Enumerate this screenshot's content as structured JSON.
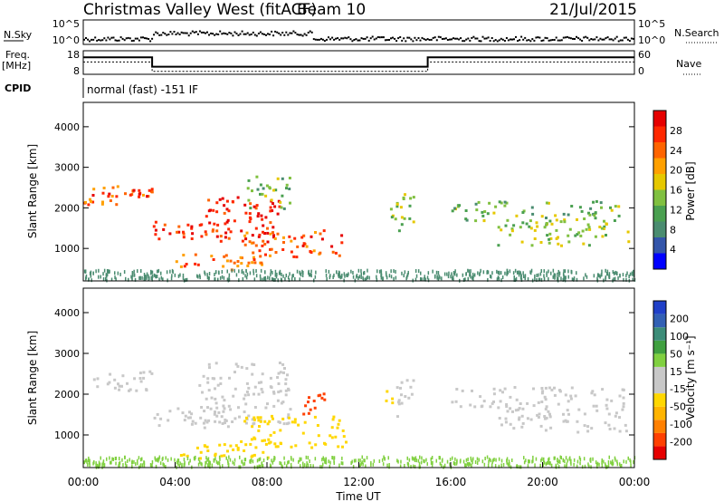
{
  "header": {
    "title": "Christmas Valley West (fitACF)",
    "beam": "Beam 10",
    "date": "21/Jul/2015"
  },
  "noise_panel": {
    "left_label": "N.Sky",
    "right_label": "N.Search",
    "ticks": [
      "10^5",
      "10^0"
    ]
  },
  "freq_panel": {
    "left_label_1": "Freq.",
    "left_label_2": "[MHz]",
    "left_ticks": [
      "18",
      "8"
    ],
    "right_label": "Nave",
    "right_ticks": [
      "60",
      "0"
    ]
  },
  "cpid_panel": {
    "label": "CPID",
    "mode": "normal (fast) -151 IF"
  },
  "colors": {
    "power": [
      "#0000ff",
      "#3355aa",
      "#4a8c70",
      "#4aa050",
      "#80c040",
      "#e6c800",
      "#ffa000",
      "#ff6400",
      "#ff2800",
      "#e60000"
    ],
    "velocity": [
      "#e60000",
      "#ff4000",
      "#ff8000",
      "#ffb400",
      "#ffd700",
      "#c8c8c8",
      "#c8c8c8",
      "#80d040",
      "#40a040",
      "#3c8c78",
      "#3260b4",
      "#2040c8"
    ]
  },
  "chart_data": [
    {
      "type": "heatmap",
      "name": "power-panel",
      "ylabel": "Slant Range [km]",
      "yticks": [
        "1000",
        "2000",
        "3000",
        "4000"
      ],
      "ylim": [
        200,
        4600
      ],
      "colorbar_label": "Power [dB]",
      "colorbar_ticks": [
        "4",
        "8",
        "12",
        "16",
        "20",
        "24",
        "28"
      ],
      "clim": [
        0,
        30
      ],
      "patches": [
        {
          "t0": 0.0,
          "t1": 3.0,
          "r0": 2100,
          "r1": 2600,
          "v": 22
        },
        {
          "t0": 0.2,
          "t1": 3.0,
          "r0": 2300,
          "r1": 2500,
          "v": 28
        },
        {
          "t0": 3.0,
          "t1": 6.5,
          "r0": 1200,
          "r1": 1700,
          "v": 26
        },
        {
          "t0": 5.0,
          "t1": 8.5,
          "r0": 1300,
          "r1": 2300,
          "v": 26
        },
        {
          "t0": 6.8,
          "t1": 11.5,
          "r0": 800,
          "r1": 1500,
          "v": 24
        },
        {
          "t0": 7.0,
          "t1": 9.0,
          "r0": 2000,
          "r1": 2800,
          "v": 12
        },
        {
          "t0": 4.0,
          "t1": 8.0,
          "r0": 500,
          "r1": 900,
          "v": 22
        },
        {
          "t0": 13.3,
          "t1": 14.4,
          "r0": 1400,
          "r1": 2400,
          "v": 14
        },
        {
          "t0": 16.0,
          "t1": 23.5,
          "r0": 1700,
          "r1": 2200,
          "v": 12
        },
        {
          "t0": 18.0,
          "t1": 23.7,
          "r0": 1100,
          "r1": 1700,
          "v": 14
        }
      ]
    },
    {
      "type": "heatmap",
      "name": "velocity-panel",
      "ylabel": "Slant Range [km]",
      "yticks": [
        "1000",
        "2000",
        "3000",
        "4000"
      ],
      "ylim": [
        200,
        4600
      ],
      "xlabel": "Time UT",
      "xticks": [
        "00:00",
        "04:00",
        "08:00",
        "12:00",
        "16:00",
        "20:00",
        "00:00"
      ],
      "xlim": [
        0,
        24
      ],
      "colorbar_label": "Velocity [m s⁻¹]",
      "colorbar_ticks": [
        "-200",
        "-100",
        "-50",
        "-15",
        "15",
        "50",
        "100",
        "200"
      ],
      "clim": [
        -250,
        250
      ],
      "patches": [
        {
          "t0": 0.0,
          "t1": 3.0,
          "r0": 2100,
          "r1": 2600,
          "v": 0
        },
        {
          "t0": 3.0,
          "t1": 6.5,
          "r0": 1200,
          "r1": 1700,
          "v": 0
        },
        {
          "t0": 5.0,
          "t1": 9.0,
          "r0": 1300,
          "r1": 2800,
          "v": 0
        },
        {
          "t0": 6.8,
          "t1": 11.5,
          "r0": 700,
          "r1": 1500,
          "v": -60
        },
        {
          "t0": 9.3,
          "t1": 10.5,
          "r0": 1500,
          "r1": 2100,
          "v": -200
        },
        {
          "t0": 4.0,
          "t1": 8.0,
          "r0": 400,
          "r1": 800,
          "v": -60
        },
        {
          "t0": 13.0,
          "t1": 13.6,
          "r0": 1800,
          "r1": 2200,
          "v": -60
        },
        {
          "t0": 13.6,
          "t1": 14.4,
          "r0": 1400,
          "r1": 2400,
          "v": 0
        },
        {
          "t0": 16.0,
          "t1": 23.5,
          "r0": 1700,
          "r1": 2200,
          "v": 0
        },
        {
          "t0": 18.0,
          "t1": 23.7,
          "r0": 1100,
          "r1": 1700,
          "v": 0
        }
      ]
    }
  ]
}
